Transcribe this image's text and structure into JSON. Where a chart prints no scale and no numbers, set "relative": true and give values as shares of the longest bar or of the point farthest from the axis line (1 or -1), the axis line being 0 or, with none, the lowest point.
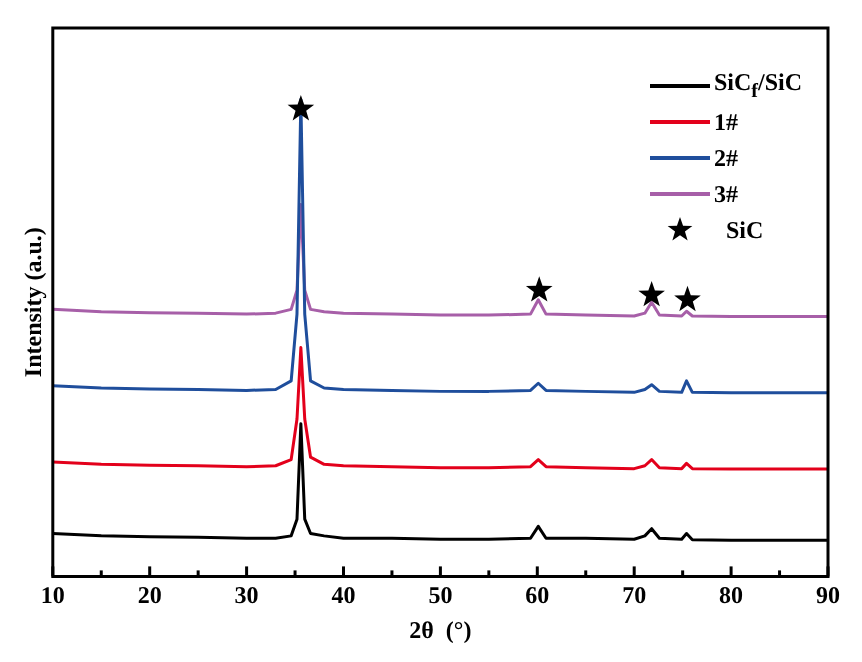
{
  "chart_data": {
    "type": "line",
    "relative": true,
    "xlabel": "2θ  (°)",
    "ylabel": "Intensity (a.u.)",
    "xlim": [
      10,
      90
    ],
    "xticks": [
      10,
      {
        "value": 15,
        "label": null
      },
      20,
      {
        "value": 25,
        "label": null
      },
      30,
      {
        "value": 35,
        "label": null
      },
      40,
      {
        "value": 45,
        "label": null
      },
      50,
      {
        "value": 55,
        "label": null
      },
      60,
      {
        "value": 65,
        "label": null
      },
      70,
      {
        "value": 75,
        "label": null
      },
      80,
      {
        "value": 85,
        "label": null
      },
      90
    ],
    "grid": false,
    "legend": "top right",
    "marker": "none",
    "line_style": "solid",
    "series": [
      {
        "name": "SiC$_{f}$/SiC",
        "color": "#000000",
        "x": [
          10,
          15,
          20,
          25,
          30,
          33,
          34.6,
          35.2,
          35.6,
          36,
          36.6,
          38,
          40,
          45,
          50,
          55,
          59.3,
          60.1,
          60.9,
          65,
          70,
          71.1,
          71.8,
          72.6,
          74.9,
          75.4,
          76,
          80,
          85,
          90
        ],
        "values": [
          0.09,
          0.085,
          0.083,
          0.082,
          0.08,
          0.08,
          0.085,
          0.12,
          0.32,
          0.12,
          0.09,
          0.085,
          0.08,
          0.08,
          0.078,
          0.078,
          0.08,
          0.105,
          0.08,
          0.08,
          0.078,
          0.085,
          0.1,
          0.08,
          0.078,
          0.09,
          0.077,
          0.076,
          0.076,
          0.076
        ]
      },
      {
        "name": "1#",
        "color": "#e3001b",
        "x": [
          10,
          15,
          20,
          25,
          30,
          33,
          34.6,
          35.2,
          35.6,
          36,
          36.6,
          38,
          40,
          45,
          50,
          55,
          59.3,
          60.1,
          60.9,
          65,
          70,
          71.1,
          71.8,
          72.6,
          74.9,
          75.4,
          76,
          80,
          85,
          90
        ],
        "values": [
          0.24,
          0.235,
          0.233,
          0.232,
          0.23,
          0.232,
          0.245,
          0.33,
          0.48,
          0.33,
          0.25,
          0.235,
          0.232,
          0.23,
          0.228,
          0.228,
          0.23,
          0.245,
          0.23,
          0.228,
          0.226,
          0.232,
          0.245,
          0.228,
          0.226,
          0.237,
          0.226,
          0.225,
          0.225,
          0.225
        ]
      },
      {
        "name": "2#",
        "color": "#1f4e9c",
        "x": [
          10,
          15,
          20,
          25,
          30,
          33,
          34.6,
          35.2,
          35.6,
          36,
          36.6,
          38,
          40,
          45,
          50,
          55,
          59.3,
          60.1,
          60.9,
          65,
          70,
          71.1,
          71.8,
          72.6,
          74.9,
          75.4,
          76,
          80,
          85,
          90
        ],
        "values": [
          0.4,
          0.395,
          0.393,
          0.392,
          0.39,
          0.392,
          0.41,
          0.55,
          1,
          0.55,
          0.41,
          0.395,
          0.392,
          0.39,
          0.388,
          0.388,
          0.39,
          0.405,
          0.39,
          0.388,
          0.386,
          0.392,
          0.402,
          0.388,
          0.386,
          0.41,
          0.386,
          0.385,
          0.385,
          0.385
        ]
      },
      {
        "name": "3#",
        "color": "#a75fa8",
        "x": [
          10,
          15,
          20,
          25,
          30,
          33,
          34.6,
          35.2,
          35.6,
          36,
          36.6,
          38,
          40,
          45,
          50,
          55,
          59.3,
          60.1,
          60.9,
          65,
          70,
          71.1,
          71.8,
          72.6,
          74.9,
          75.4,
          76,
          80,
          85,
          90
        ],
        "values": [
          0.56,
          0.555,
          0.553,
          0.552,
          0.55,
          0.552,
          0.56,
          0.6,
          0.78,
          0.6,
          0.56,
          0.555,
          0.552,
          0.55,
          0.548,
          0.548,
          0.55,
          0.58,
          0.55,
          0.548,
          0.546,
          0.552,
          0.575,
          0.548,
          0.546,
          0.556,
          0.546,
          0.545,
          0.545,
          0.545
        ]
      },
      {
        "name": "SiC",
        "type": "scatter",
        "marker": "star",
        "color": "#000000",
        "x": [
          35.6,
          60.2,
          71.8,
          75.5
        ],
        "values": [
          0.98,
          0.6,
          0.59,
          0.58
        ]
      }
    ]
  }
}
